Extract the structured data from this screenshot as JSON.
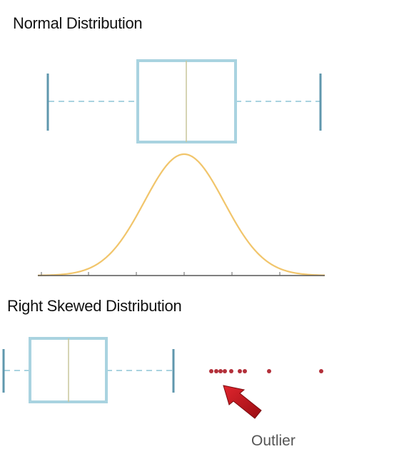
{
  "sections": {
    "normal": {
      "title": "Normal Distribution"
    },
    "skewed": {
      "title": "Right Skewed Distribution"
    }
  },
  "annotations": {
    "outlier_label": "Outlier"
  },
  "colors": {
    "box": "#a9d3e0",
    "whisker_cap": "#5f97ad",
    "median": "#c8c69a",
    "curve": "#f1c56b",
    "axis": "#555555",
    "outlier_dot": "#b3303a",
    "arrow": "#c0141c"
  },
  "icons": {
    "outlier_pointer": "red-arrow-icon"
  }
}
